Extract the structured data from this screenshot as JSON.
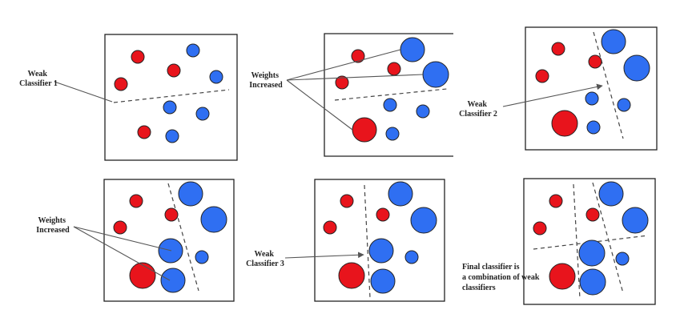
{
  "colors": {
    "class_a": "#e8141c",
    "class_b": "#2f6ff2",
    "outline": "#222222"
  },
  "labels": {
    "weak_classifier_1": [
      "Weak",
      "Classifier 1"
    ],
    "weights_increased_1": [
      "Weights",
      "Increased"
    ],
    "weak_classifier_2": [
      "Weak",
      "Classifier 2"
    ],
    "weights_increased_2": [
      "Weights",
      "Increased"
    ],
    "weak_classifier_3": [
      "Weak",
      "Classifier 3"
    ],
    "final_classifier": [
      "Final classifier is",
      "a combination of weak",
      "classifiers"
    ]
  }
}
